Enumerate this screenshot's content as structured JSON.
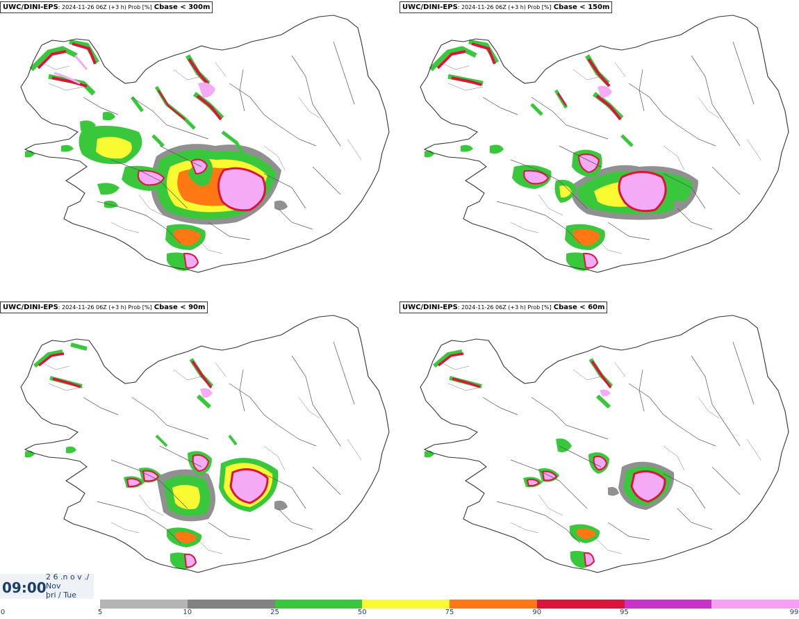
{
  "panels": [
    {
      "model": "UWC/DINI-EPS",
      "meta": ": 2024-11-26 06Z (+3 h) Prob [%]",
      "subtitle": "Cbase < 300m"
    },
    {
      "model": "UWC/DINI-EPS",
      "meta": ": 2024-11-26 06Z (+3 h) Prob [%]",
      "subtitle": "Cbase < 150m"
    },
    {
      "model": "UWC/DINI-EPS",
      "meta": ": 2024-11-26 06Z (+3 h) Prob [%]",
      "subtitle": "Cbase < 90m"
    },
    {
      "model": "UWC/DINI-EPS",
      "meta": ": 2024-11-26 06Z (+3 h) Prob [%]",
      "subtitle": "Cbase < 60m"
    }
  ],
  "timebox": {
    "time": "09:00",
    "line1": "2 6 .n o v ./",
    "line2": "Nov",
    "line3": "þri / Tue"
  },
  "legend": {
    "ticks": [
      "0",
      "5",
      "10",
      "25",
      "50",
      "75",
      "90",
      "95",
      "99"
    ],
    "colors": [
      "#b4b4b4",
      "#828282",
      "#39c83c",
      "#fafa32",
      "#ff7814",
      "#dc143c",
      "#c832c8",
      "#f5a0f5"
    ]
  },
  "colors": {
    "prob_10": "#909090",
    "prob_25": "#39c83c",
    "prob_50": "#fafa32",
    "prob_75": "#ff7814",
    "prob_90": "#dc143c",
    "prob_95": "#c832c8",
    "prob_99": "#f5aaf5",
    "label_text": "#1a3d6e"
  }
}
